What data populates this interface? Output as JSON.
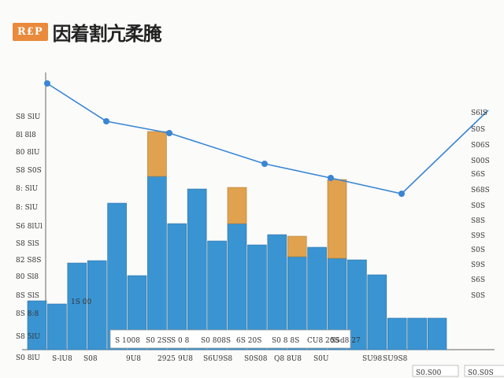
{
  "header": {
    "badge": "R£P",
    "title": "因着割亢柔腌"
  },
  "chart_data": {
    "type": "bar",
    "title": "因着割亢柔腌",
    "y_ticks_left": [
      "S0 8lU",
      "S8 5lU",
      "8S 8:8",
      "8S SlS",
      "80 Sl8",
      "82 S8S",
      "S8 SlS",
      "S6 8lUl",
      "8: SlU",
      "8: SlU",
      "S8 S0S",
      "80 8lU",
      "8l 8l8",
      "S8 SlU"
    ],
    "y_ticks_right": [
      "S6lS",
      "S0S",
      "S06S",
      "S00S",
      "S6S",
      "S68S",
      "S0S",
      "S8S",
      "S9S",
      "S0S",
      "S9S",
      "S6S",
      "S0S"
    ],
    "categories": [
      "S-lU8",
      "S08",
      "9U8",
      "2925",
      "9U8",
      "S6U9S8",
      "S0S08",
      "Q8 8U8",
      "S0U",
      "SU98",
      "SU9S8"
    ],
    "annotations": [
      "S 1008",
      "S0 2SS",
      "S 0 8",
      "S0 808S",
      "6S 20S",
      "S0 8 8S",
      "CU8 20S",
      "S5d8 27"
    ],
    "corner_labels": [
      "1S 00",
      "S0.S00",
      "S0.S0S"
    ],
    "blue_values": [
      62,
      58,
      110,
      113,
      186,
      94,
      220,
      160,
      204,
      138,
      160,
      133,
      146,
      118,
      130,
      116,
      114,
      95,
      40,
      40,
      40
    ],
    "orange_values": [
      0,
      0,
      0,
      0,
      0,
      0,
      57,
      0,
      0,
      0,
      46,
      0,
      0,
      26,
      0,
      100,
      0,
      0,
      0,
      0,
      0
    ],
    "line_values": [
      374,
      326,
      311,
      272,
      254,
      234
    ],
    "line_end": 340,
    "colors": {
      "blue": "#3a94d2",
      "orange": "#e0a24f",
      "line": "#3a86d4",
      "axis": "#666666"
    }
  }
}
